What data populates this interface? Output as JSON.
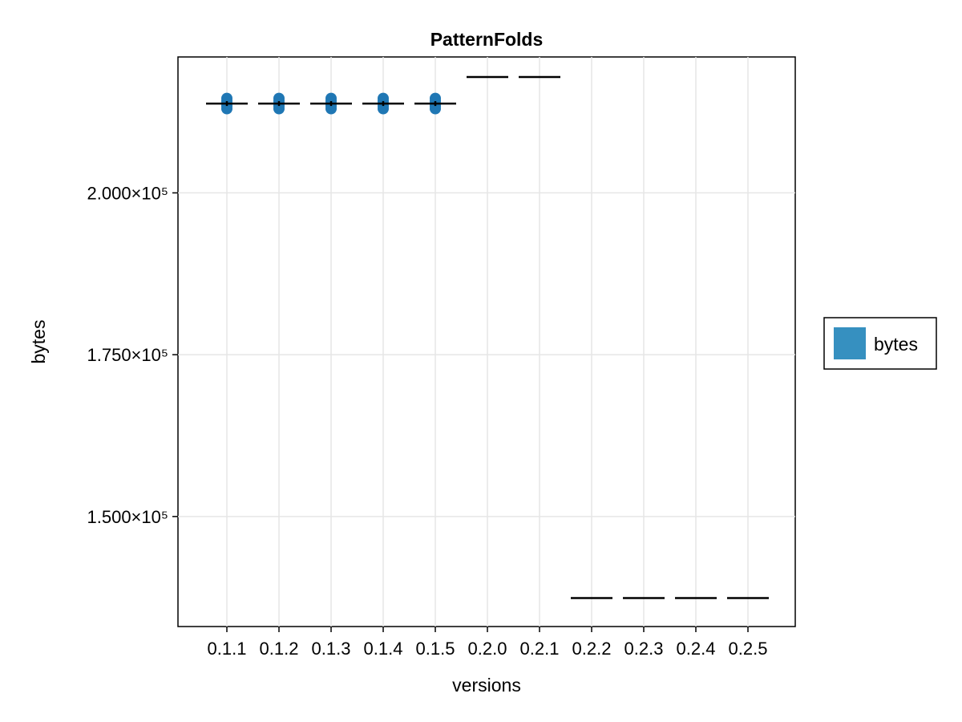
{
  "chart_data": {
    "type": "scatter",
    "title": "PatternFolds",
    "xlabel": "versions",
    "ylabel": "bytes",
    "categories": [
      "0.1.1",
      "0.1.2",
      "0.1.3",
      "0.1.4",
      "0.1.5",
      "0.2.0",
      "0.2.1",
      "0.2.2",
      "0.2.3",
      "0.2.4",
      "0.2.5"
    ],
    "ylim": [
      133000,
      221000
    ],
    "y_ticks": [
      150000,
      175000,
      200000
    ],
    "y_tick_labels": [
      "1.500×10⁵",
      "1.750×10⁵",
      "2.000×10⁵"
    ],
    "grid": true,
    "legend": {
      "position": "right",
      "entries": [
        {
          "label": "bytes",
          "color": "#3690c0"
        }
      ]
    },
    "series": [
      {
        "name": "bytes",
        "points": [
          {
            "category": "0.1.1",
            "values": [
              213000,
              213400,
              213800,
              214200,
              214600
            ]
          },
          {
            "category": "0.1.2",
            "values": [
              213000,
              213400,
              213800,
              214200,
              214600
            ]
          },
          {
            "category": "0.1.3",
            "values": [
              213000,
              213400,
              213800,
              214200,
              214600
            ]
          },
          {
            "category": "0.1.4",
            "values": [
              213000,
              213400,
              213800,
              214200,
              214600
            ]
          },
          {
            "category": "0.1.5",
            "values": [
              213000,
              213400,
              213800,
              214200,
              214600
            ]
          }
        ],
        "medians": [
          {
            "category": "0.1.1",
            "value": 213800
          },
          {
            "category": "0.1.2",
            "value": 213800
          },
          {
            "category": "0.1.3",
            "value": 213800
          },
          {
            "category": "0.1.4",
            "value": 213800
          },
          {
            "category": "0.1.5",
            "value": 213800
          },
          {
            "category": "0.2.0",
            "value": 217900
          },
          {
            "category": "0.2.1",
            "value": 217900
          },
          {
            "category": "0.2.2",
            "value": 137400
          },
          {
            "category": "0.2.3",
            "value": 137400
          },
          {
            "category": "0.2.4",
            "value": 137400
          },
          {
            "category": "0.2.5",
            "value": 137400
          }
        ]
      }
    ],
    "colors": {
      "points": "#1f77b4",
      "median": "#000000",
      "legend_patch": "#3690c0",
      "grid": "#e6e6e6"
    }
  }
}
